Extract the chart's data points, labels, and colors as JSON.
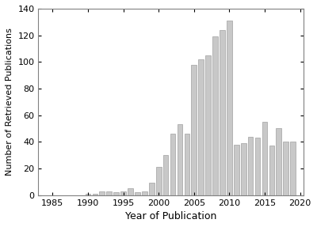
{
  "years": [
    1985,
    1986,
    1987,
    1988,
    1989,
    1990,
    1991,
    1992,
    1993,
    1994,
    1995,
    1996,
    1997,
    1998,
    1999,
    2000,
    2001,
    2002,
    2003,
    2004,
    2005,
    2006,
    2007,
    2008,
    2009,
    2010,
    2011,
    2012,
    2013,
    2014,
    2015,
    2016,
    2017,
    2018,
    2019
  ],
  "values": [
    0,
    0,
    0,
    0,
    0,
    1,
    1,
    3,
    3,
    2,
    3,
    5,
    2,
    3,
    9,
    21,
    30,
    46,
    53,
    46,
    98,
    102,
    105,
    119,
    124,
    131,
    38,
    39,
    44,
    43,
    55,
    37,
    50,
    40,
    40
  ],
  "bar_color": "#c8c8c8",
  "bar_edgecolor": "#a0a0a0",
  "xlabel": "Year of Publication",
  "ylabel": "Number of Retrieved Publications",
  "xlim": [
    1983.0,
    2020.5
  ],
  "ylim": [
    0,
    140
  ],
  "yticks": [
    0,
    20,
    40,
    60,
    80,
    100,
    120,
    140
  ],
  "xticks": [
    1985,
    1990,
    1995,
    2000,
    2005,
    2010,
    2015,
    2020
  ],
  "background_color": "#ffffff",
  "xlabel_fontsize": 9,
  "ylabel_fontsize": 8,
  "tick_fontsize": 8,
  "bar_width": 0.75
}
